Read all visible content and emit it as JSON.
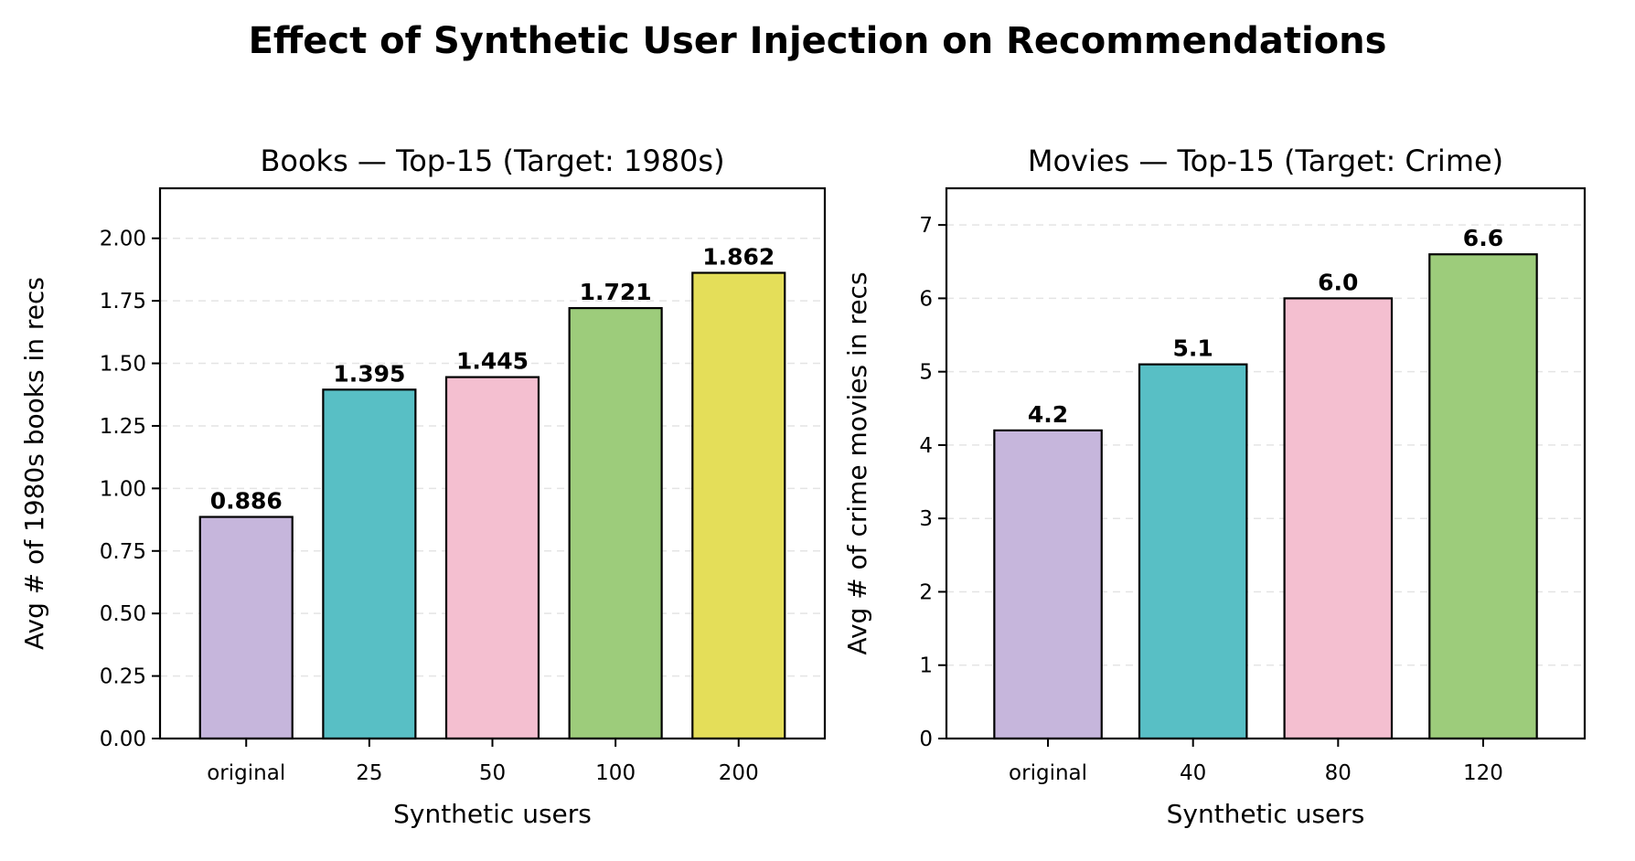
{
  "figure": {
    "title": "Effect of Synthetic User Injection on Recommendations"
  },
  "chart_data": [
    {
      "type": "bar",
      "title": "Books — Top-15 (Target: 1980s)",
      "xlabel": "Synthetic users",
      "ylabel": "Avg # of 1980s books in recs",
      "categories": [
        "original",
        "25",
        "50",
        "100",
        "200"
      ],
      "values": [
        0.886,
        1.395,
        1.445,
        1.721,
        1.862
      ],
      "data_labels": [
        "0.886",
        "1.395",
        "1.445",
        "1.721",
        "1.862"
      ],
      "colors": [
        "#c6b6dc",
        "#58bfc5",
        "#f4bfd0",
        "#9dcc7b",
        "#e4de59"
      ],
      "ylim": [
        0,
        2.2
      ],
      "yticks": [
        0,
        0.25,
        0.5,
        0.75,
        1.0,
        1.25,
        1.5,
        1.75,
        2.0
      ],
      "ytick_labels": [
        "0.00",
        "0.25",
        "0.50",
        "0.75",
        "1.00",
        "1.25",
        "1.50",
        "1.75",
        "2.00"
      ],
      "grid": "y-dashed",
      "legend": "none"
    },
    {
      "type": "bar",
      "title": "Movies — Top-15 (Target: Crime)",
      "xlabel": "Synthetic users",
      "ylabel": "Avg # of crime movies in recs",
      "categories": [
        "original",
        "40",
        "80",
        "120"
      ],
      "values": [
        4.2,
        5.1,
        6.0,
        6.6
      ],
      "data_labels": [
        "4.2",
        "5.1",
        "6.0",
        "6.6"
      ],
      "colors": [
        "#c6b6dc",
        "#58bfc5",
        "#f4bfd0",
        "#9dcc7b"
      ],
      "ylim": [
        0,
        7.5
      ],
      "yticks": [
        0,
        1,
        2,
        3,
        4,
        5,
        6,
        7
      ],
      "ytick_labels": [
        "0",
        "1",
        "2",
        "3",
        "4",
        "5",
        "6",
        "7"
      ],
      "grid": "y-dashed",
      "legend": "none"
    }
  ]
}
